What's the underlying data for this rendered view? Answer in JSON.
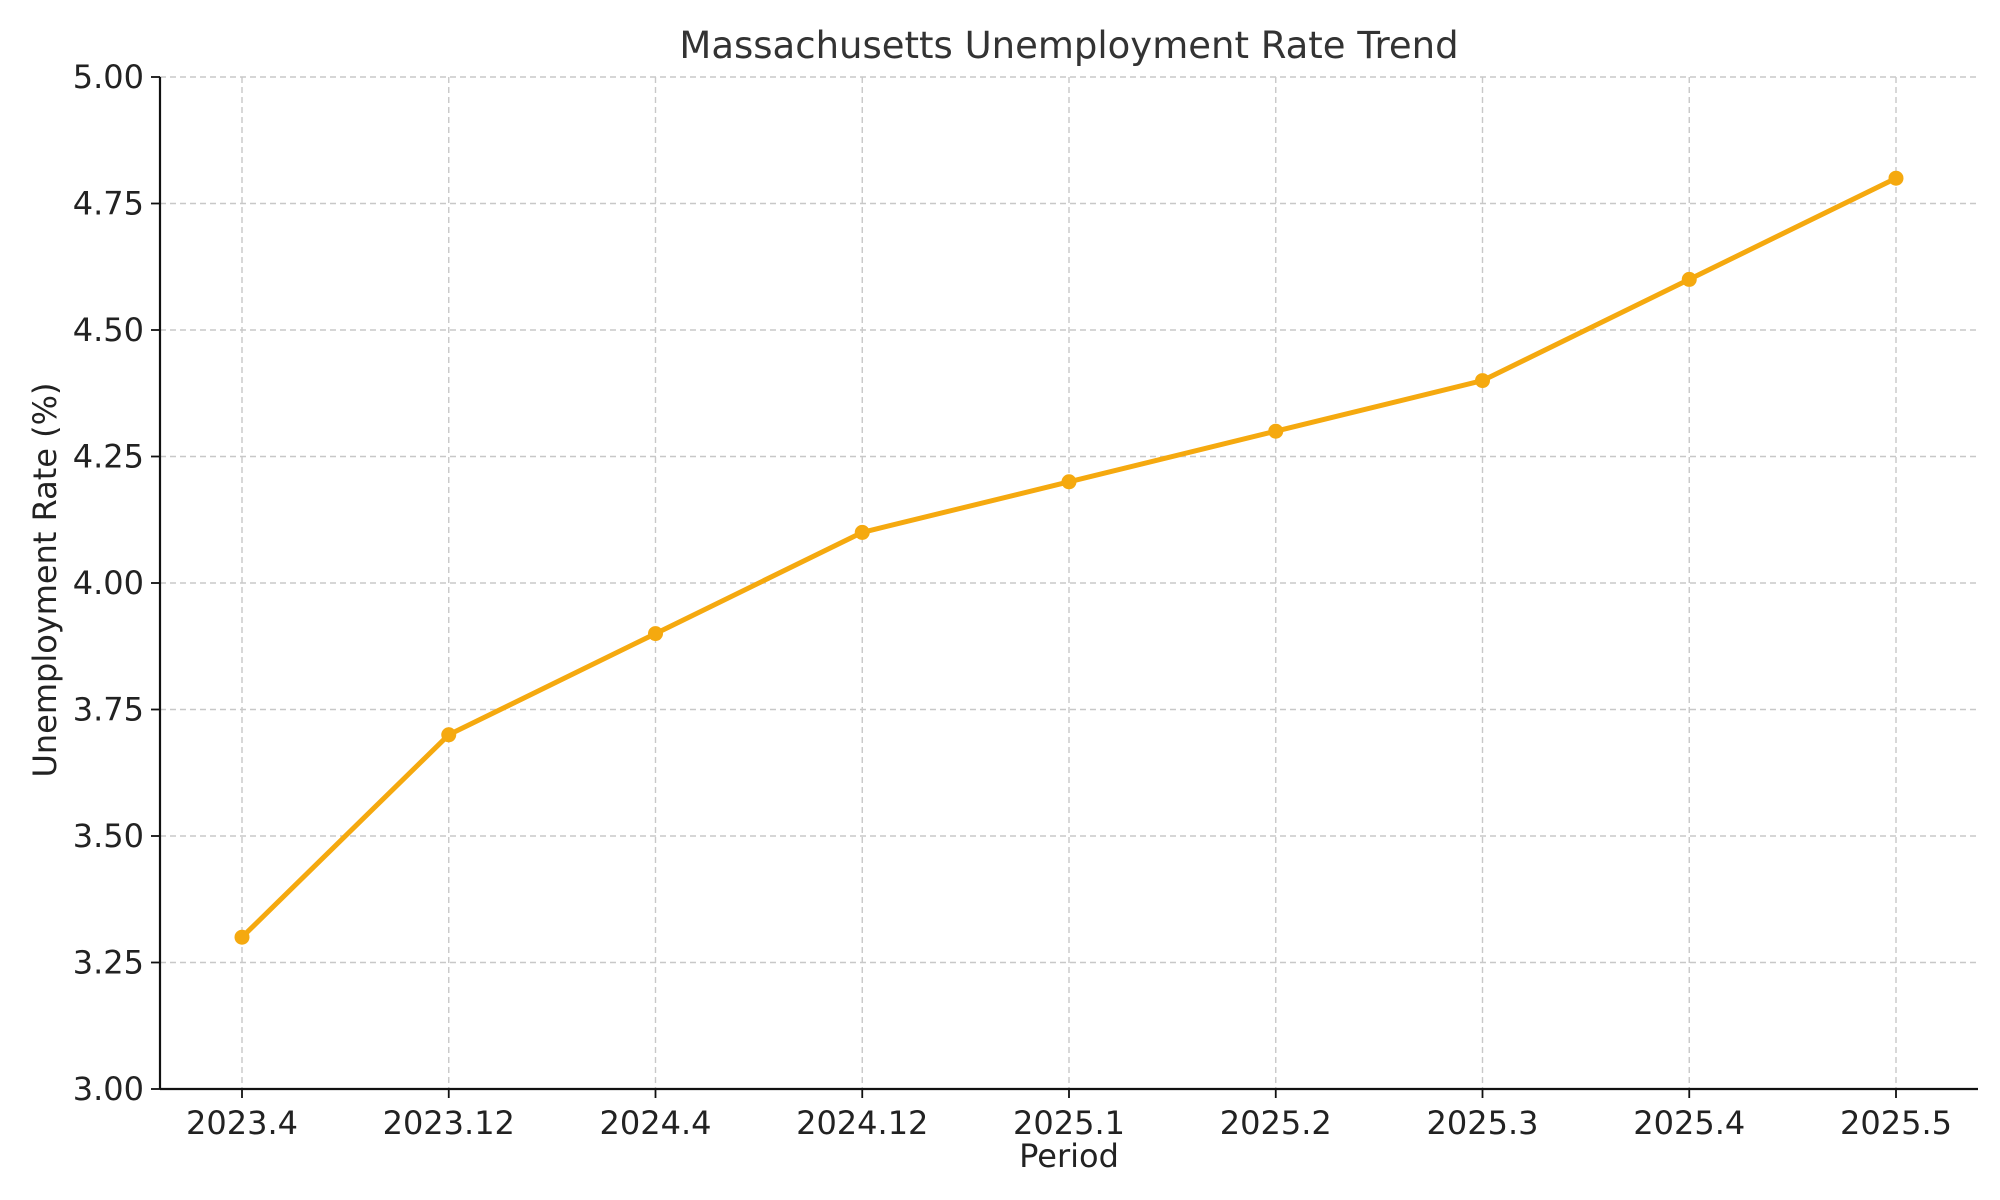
{
  "chart_data": {
    "type": "line",
    "title": "Massachusetts Unemployment Rate Trend",
    "xlabel": "Period",
    "ylabel": "Unemployment Rate (%)",
    "categories": [
      "2023.4",
      "2023.12",
      "2024.4",
      "2024.12",
      "2025.1",
      "2025.2",
      "2025.3",
      "2025.4",
      "2025.5"
    ],
    "series": [
      {
        "values": [
          3.3,
          3.7,
          3.9,
          4.1,
          4.2,
          4.3,
          4.4,
          4.6,
          4.8
        ],
        "color": "#F5A90F",
        "marker": "circle"
      }
    ],
    "ylim": [
      3.0,
      5.0
    ],
    "yticks": [
      "3.00",
      "3.25",
      "3.50",
      "3.75",
      "4.00",
      "4.25",
      "4.50",
      "4.75",
      "5.00"
    ],
    "grid": true,
    "legend": false
  }
}
